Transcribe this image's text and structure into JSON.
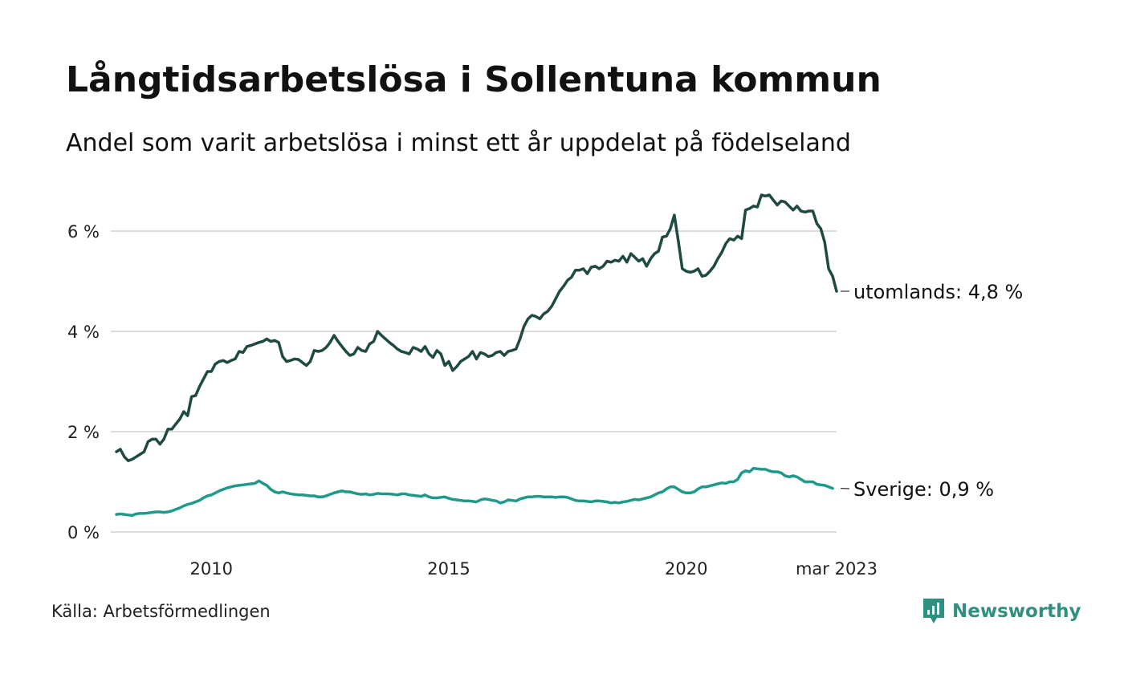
{
  "title": "Långtidsarbetslösa i Sollentuna kommun",
  "subtitle": "Andel som varit arbetslösa i minst ett år uppdelat på födelseland",
  "source": "Källa: Arbetsförmedlingen",
  "brand": {
    "name": "Newsworthy",
    "icon": "newsworthy-logo-icon",
    "color": "#2f8f80"
  },
  "chart_data": {
    "type": "line",
    "x_start": "2008-01",
    "x_end": "2023-03",
    "x_ticks": [
      {
        "date": "2010-01",
        "label": "2010"
      },
      {
        "date": "2015-01",
        "label": "2015"
      },
      {
        "date": "2020-01",
        "label": "2020"
      },
      {
        "date": "2023-03",
        "label": "mar 2023"
      }
    ],
    "y_ticks": [
      {
        "value": 0,
        "label": "0 %"
      },
      {
        "value": 2,
        "label": "2 %"
      },
      {
        "value": 4,
        "label": "4 %"
      },
      {
        "value": 6,
        "label": "6 %"
      }
    ],
    "ylim": [
      0,
      6.9
    ],
    "grid": true,
    "series": [
      {
        "name": "utomlands",
        "end_label": "utomlands: 4,8 %",
        "color": "#1f4a42",
        "values": [
          1.6,
          1.65,
          1.5,
          1.42,
          1.45,
          1.5,
          1.55,
          1.6,
          1.8,
          1.85,
          1.85,
          1.75,
          1.85,
          2.05,
          2.05,
          2.15,
          2.25,
          2.4,
          2.32,
          2.7,
          2.72,
          2.9,
          3.05,
          3.2,
          3.2,
          3.35,
          3.4,
          3.42,
          3.38,
          3.42,
          3.45,
          3.6,
          3.58,
          3.7,
          3.72,
          3.75,
          3.78,
          3.8,
          3.85,
          3.8,
          3.82,
          3.78,
          3.5,
          3.4,
          3.42,
          3.45,
          3.44,
          3.38,
          3.32,
          3.4,
          3.62,
          3.6,
          3.62,
          3.68,
          3.78,
          3.92,
          3.8,
          3.7,
          3.6,
          3.52,
          3.55,
          3.68,
          3.62,
          3.6,
          3.75,
          3.8,
          4.0,
          3.92,
          3.85,
          3.78,
          3.72,
          3.65,
          3.6,
          3.58,
          3.55,
          3.68,
          3.65,
          3.6,
          3.7,
          3.55,
          3.48,
          3.62,
          3.55,
          3.32,
          3.4,
          3.22,
          3.3,
          3.4,
          3.45,
          3.5,
          3.6,
          3.45,
          3.58,
          3.55,
          3.5,
          3.52,
          3.58,
          3.6,
          3.52,
          3.6,
          3.62,
          3.65,
          3.85,
          4.1,
          4.25,
          4.32,
          4.3,
          4.25,
          4.35,
          4.4,
          4.5,
          4.65,
          4.8,
          4.9,
          5.02,
          5.08,
          5.22,
          5.22,
          5.25,
          5.15,
          5.28,
          5.3,
          5.25,
          5.3,
          5.4,
          5.38,
          5.42,
          5.4,
          5.5,
          5.38,
          5.55,
          5.48,
          5.4,
          5.45,
          5.3,
          5.45,
          5.55,
          5.6,
          5.88,
          5.9,
          6.05,
          6.32,
          5.8,
          5.25,
          5.2,
          5.18,
          5.2,
          5.25,
          5.1,
          5.12,
          5.2,
          5.3,
          5.45,
          5.58,
          5.75,
          5.85,
          5.82,
          5.9,
          5.85,
          6.42,
          6.45,
          6.5,
          6.48,
          6.72,
          6.7,
          6.72,
          6.62,
          6.52,
          6.6,
          6.58,
          6.5,
          6.42,
          6.5,
          6.4,
          6.38,
          6.4,
          6.4,
          6.15,
          6.05,
          5.78,
          5.25,
          5.1,
          4.8
        ]
      },
      {
        "name": "Sverige",
        "end_label": "Sverige: 0,9 %",
        "color": "#1f9a8a",
        "values": [
          0.35,
          0.36,
          0.35,
          0.34,
          0.33,
          0.36,
          0.37,
          0.37,
          0.38,
          0.39,
          0.4,
          0.4,
          0.39,
          0.4,
          0.42,
          0.45,
          0.48,
          0.52,
          0.55,
          0.57,
          0.6,
          0.63,
          0.68,
          0.72,
          0.74,
          0.78,
          0.82,
          0.85,
          0.88,
          0.9,
          0.92,
          0.93,
          0.94,
          0.95,
          0.96,
          0.97,
          1.02,
          0.97,
          0.93,
          0.85,
          0.8,
          0.78,
          0.8,
          0.78,
          0.76,
          0.75,
          0.74,
          0.74,
          0.73,
          0.72,
          0.72,
          0.7,
          0.7,
          0.72,
          0.75,
          0.78,
          0.8,
          0.82,
          0.8,
          0.8,
          0.78,
          0.76,
          0.75,
          0.76,
          0.74,
          0.75,
          0.77,
          0.76,
          0.76,
          0.76,
          0.75,
          0.74,
          0.76,
          0.76,
          0.74,
          0.73,
          0.72,
          0.71,
          0.74,
          0.7,
          0.68,
          0.68,
          0.69,
          0.7,
          0.67,
          0.65,
          0.64,
          0.63,
          0.62,
          0.62,
          0.61,
          0.6,
          0.64,
          0.66,
          0.65,
          0.63,
          0.62,
          0.58,
          0.6,
          0.64,
          0.63,
          0.62,
          0.66,
          0.68,
          0.7,
          0.7,
          0.71,
          0.71,
          0.7,
          0.7,
          0.7,
          0.69,
          0.7,
          0.7,
          0.69,
          0.66,
          0.63,
          0.62,
          0.62,
          0.61,
          0.6,
          0.62,
          0.62,
          0.61,
          0.6,
          0.58,
          0.59,
          0.58,
          0.6,
          0.61,
          0.63,
          0.65,
          0.64,
          0.66,
          0.68,
          0.7,
          0.74,
          0.78,
          0.8,
          0.86,
          0.9,
          0.9,
          0.85,
          0.8,
          0.78,
          0.78,
          0.8,
          0.86,
          0.9,
          0.9,
          0.92,
          0.94,
          0.96,
          0.98,
          0.97,
          1.0,
          1.0,
          1.05,
          1.18,
          1.22,
          1.2,
          1.27,
          1.26,
          1.25,
          1.25,
          1.22,
          1.2,
          1.2,
          1.18,
          1.12,
          1.1,
          1.12,
          1.1,
          1.05,
          1.0,
          1.0,
          1.0,
          0.95,
          0.94,
          0.93,
          0.9,
          0.87
        ]
      }
    ]
  }
}
